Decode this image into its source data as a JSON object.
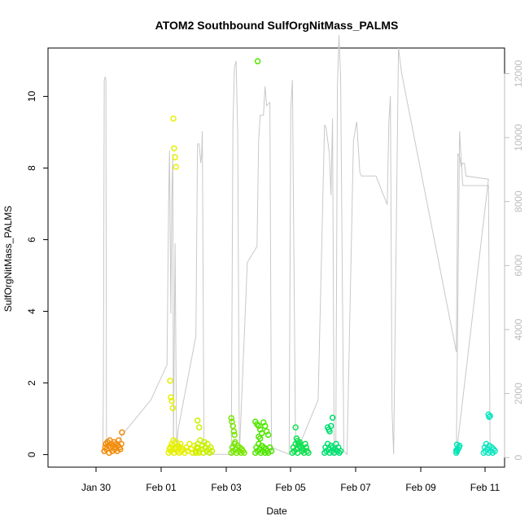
{
  "chart_data": {
    "type": "scatter",
    "title": "ATOM2 Southbound SulfOrgNitMass_PALMS",
    "xlabel": "Date",
    "ylabel": "SulfOrgNitMass_PALMS",
    "x_ticks": [
      "Jan 30",
      "Feb 01",
      "Feb 03",
      "Feb 05",
      "Feb 07",
      "Feb 09",
      "Feb 11"
    ],
    "y_ticks": [
      0,
      2,
      4,
      6,
      8,
      10
    ],
    "y2_ticks": [
      0,
      2000,
      4000,
      6000,
      8000,
      10000,
      12000
    ],
    "xlim_days": [
      -1.7,
      12.5
    ],
    "ylim": [
      -0.35,
      11.35
    ],
    "y2lim": [
      -300,
      12800
    ],
    "grid": false,
    "legend": "none",
    "colors": {
      "altitude_line": "#c8c8c8",
      "right_axis": "#bdbdbd"
    },
    "series": [
      {
        "color": "#f28c0a",
        "x": [
          0.05,
          0.08,
          0.1,
          0.12,
          0.15,
          0.18,
          0.2,
          0.22,
          0.25,
          0.28,
          0.3,
          0.32,
          0.35,
          0.38,
          0.4,
          0.42,
          0.45,
          0.48,
          0.5,
          0.52,
          0.55,
          0.58,
          0.6
        ],
        "y": [
          0.1,
          0.2,
          0.3,
          0.15,
          0.35,
          0.25,
          0.05,
          0.4,
          0.2,
          0.3,
          0.1,
          0.25,
          0.35,
          0.15,
          0.2,
          0.3,
          0.1,
          0.25,
          0.4,
          0.2,
          0.15,
          0.3,
          0.62
        ]
      },
      {
        "color": "#e6f000",
        "x": [
          2.05,
          2.08,
          2.1,
          2.12,
          2.15,
          2.18,
          2.2,
          2.22,
          2.25,
          2.28,
          2.3,
          2.32,
          2.35,
          2.38,
          2.4,
          2.42,
          2.45,
          2.5,
          2.55,
          2.6,
          2.65,
          2.7,
          2.75,
          2.8,
          2.85,
          2.9,
          2.95,
          3.0,
          2.1,
          2.12,
          2.15,
          2.18,
          2.2,
          2.22,
          2.25,
          2.28
        ],
        "y": [
          0.05,
          0.15,
          0.2,
          0.1,
          0.3,
          0.25,
          0.4,
          0.05,
          0.15,
          0.35,
          0.2,
          0.1,
          0.25,
          0.05,
          0.2,
          0.3,
          0.1,
          0.15,
          0.05,
          0.2,
          0.1,
          0.3,
          0.15,
          0.05,
          0.25,
          0.1,
          0.2,
          0.05,
          2.06,
          1.6,
          1.5,
          1.3,
          9.38,
          8.55,
          8.3,
          8.03
        ]
      },
      {
        "color": "#c8f000",
        "x": [
          2.9,
          2.93,
          2.96,
          3.0,
          3.03,
          3.06,
          3.1,
          3.13,
          3.16,
          3.2,
          3.23,
          3.26,
          3.3,
          3.33,
          3.36,
          3.4,
          2.95,
          3.0
        ],
        "y": [
          0.05,
          0.2,
          0.3,
          0.1,
          0.4,
          0.15,
          0.25,
          0.05,
          0.35,
          0.2,
          0.1,
          0.3,
          0.15,
          0.05,
          0.2,
          0.1,
          0.95,
          0.76
        ]
      },
      {
        "color": "#78e600",
        "x": [
          4.0,
          4.03,
          4.06,
          4.1,
          4.13,
          4.16,
          4.2,
          4.23,
          4.26,
          4.3,
          4.33,
          4.36,
          4.4,
          4.0,
          4.02,
          4.05,
          4.08,
          4.1,
          4.12
        ],
        "y": [
          0.05,
          0.2,
          0.1,
          0.3,
          0.15,
          0.05,
          0.25,
          0.1,
          0.2,
          0.05,
          0.15,
          0.1,
          0.05,
          1.02,
          0.92,
          0.8,
          0.65,
          0.55,
          0.35
        ]
      },
      {
        "color": "#50e600",
        "x": [
          4.75,
          4.78,
          4.82,
          4.85,
          4.88,
          4.92,
          4.95,
          4.98,
          5.02,
          5.05,
          5.08,
          5.12,
          5.15,
          5.2,
          5.25,
          4.75,
          4.8,
          4.85,
          4.9,
          4.95,
          4.85,
          4.9,
          5.0,
          5.05,
          5.1,
          5.15,
          4.82
        ],
        "y": [
          0.05,
          0.2,
          0.1,
          0.3,
          0.15,
          0.05,
          0.25,
          0.1,
          0.2,
          0.05,
          0.15,
          0.1,
          0.05,
          0.2,
          0.1,
          0.92,
          0.85,
          0.8,
          0.7,
          0.6,
          0.5,
          0.45,
          0.9,
          0.8,
          0.65,
          0.55,
          10.98
        ]
      },
      {
        "color": "#10e050",
        "x": [
          5.9,
          5.93,
          5.96,
          6.0,
          6.03,
          6.06,
          6.1,
          6.13,
          6.16,
          6.2,
          6.23,
          6.26,
          6.3,
          6.33,
          6.36,
          6.4,
          6.0,
          6.03,
          6.06,
          6.1
        ],
        "y": [
          0.05,
          0.2,
          0.1,
          0.3,
          0.15,
          0.05,
          0.25,
          0.35,
          0.2,
          0.1,
          0.15,
          0.05,
          0.3,
          0.2,
          0.1,
          0.05,
          0.76,
          0.45,
          0.38,
          0.3
        ]
      },
      {
        "color": "#00e070",
        "x": [
          6.9,
          6.93,
          6.96,
          7.0,
          7.03,
          7.06,
          7.1,
          7.13,
          7.16,
          7.2,
          7.23,
          7.26,
          7.3,
          7.33,
          7.36,
          7.4,
          7.0,
          7.03,
          7.06,
          7.1,
          7.15
        ],
        "y": [
          0.05,
          0.2,
          0.1,
          0.3,
          0.15,
          0.05,
          0.25,
          0.1,
          0.2,
          0.05,
          0.15,
          0.3,
          0.1,
          0.2,
          0.05,
          0.1,
          0.76,
          0.7,
          0.65,
          0.8,
          1.03
        ]
      },
      {
        "color": "#00e6b4",
        "x": [
          11.0,
          11.02,
          11.05,
          11.08,
          11.1,
          11.0,
          11.02
        ],
        "y": [
          0.05,
          0.1,
          0.15,
          0.2,
          0.25,
          0.12,
          0.28
        ]
      },
      {
        "color": "#10e6c0",
        "x": [
          11.85,
          11.88,
          11.9,
          11.93,
          11.96,
          12.0,
          12.03,
          12.06,
          12.1,
          12.13,
          12.16,
          12.2,
          12.0,
          12.02,
          12.05
        ],
        "y": [
          0.05,
          0.2,
          0.1,
          0.3,
          0.15,
          0.05,
          0.25,
          0.1,
          0.2,
          0.05,
          0.15,
          0.1,
          1.12,
          1.05,
          1.08
        ]
      }
    ],
    "altitude_line": [
      [
        0.0,
        100
      ],
      [
        0.02,
        1900
      ],
      [
        0.05,
        11800
      ],
      [
        0.08,
        11900
      ],
      [
        0.1,
        11800
      ],
      [
        0.12,
        300
      ],
      [
        0.35,
        200
      ],
      [
        0.6,
        700
      ],
      [
        1.5,
        1800
      ],
      [
        2.0,
        2900
      ],
      [
        2.05,
        8000
      ],
      [
        2.08,
        9600
      ],
      [
        2.12,
        4500
      ],
      [
        2.15,
        8100
      ],
      [
        2.18,
        9500
      ],
      [
        2.2,
        200
      ],
      [
        2.25,
        6700
      ],
      [
        2.3,
        300
      ],
      [
        2.35,
        900
      ],
      [
        2.9,
        3800
      ],
      [
        2.95,
        9800
      ],
      [
        3.0,
        9800
      ],
      [
        3.05,
        9200
      ],
      [
        3.08,
        9500
      ],
      [
        3.1,
        10200
      ],
      [
        3.15,
        300
      ],
      [
        3.2,
        100
      ],
      [
        3.3,
        100
      ],
      [
        4.0,
        100
      ],
      [
        4.05,
        10400
      ],
      [
        4.1,
        12200
      ],
      [
        4.15,
        12400
      ],
      [
        4.2,
        10100
      ],
      [
        4.25,
        100
      ],
      [
        4.5,
        6100
      ],
      [
        4.8,
        6600
      ],
      [
        4.85,
        9900
      ],
      [
        4.9,
        10700
      ],
      [
        5.0,
        10700
      ],
      [
        5.05,
        11600
      ],
      [
        5.1,
        11000
      ],
      [
        5.2,
        11100
      ],
      [
        5.25,
        200
      ],
      [
        5.3,
        300
      ],
      [
        5.8,
        100
      ],
      [
        5.85,
        10900
      ],
      [
        5.9,
        11800
      ],
      [
        6.0,
        100
      ],
      [
        6.7,
        1800
      ],
      [
        6.9,
        10400
      ],
      [
        6.95,
        10300
      ],
      [
        7.0,
        9900
      ],
      [
        7.05,
        9500
      ],
      [
        7.1,
        8200
      ],
      [
        7.15,
        10600
      ],
      [
        7.2,
        100
      ],
      [
        7.25,
        100
      ],
      [
        7.3,
        11600
      ],
      [
        7.35,
        13200
      ],
      [
        7.4,
        11900
      ],
      [
        7.5,
        200
      ],
      [
        7.6,
        100
      ],
      [
        7.8,
        9900
      ],
      [
        7.9,
        10500
      ],
      [
        8.0,
        8900
      ],
      [
        8.05,
        8800
      ],
      [
        8.5,
        8800
      ],
      [
        8.85,
        7900
      ],
      [
        8.9,
        10500
      ],
      [
        8.95,
        11300
      ],
      [
        9.0,
        1500
      ],
      [
        9.05,
        100
      ],
      [
        9.2,
        12800
      ],
      [
        9.3,
        12000
      ],
      [
        11.0,
        3300
      ],
      [
        11.05,
        9500
      ],
      [
        11.1,
        9400
      ],
      [
        11.15,
        9100
      ],
      [
        11.2,
        9200
      ],
      [
        11.25,
        9200
      ],
      [
        11.3,
        8800
      ],
      [
        12.0,
        8700
      ],
      [
        11.0,
        100
      ],
      [
        11.1,
        10200
      ],
      [
        11.2,
        8500
      ],
      [
        11.5,
        8500
      ],
      [
        12.0,
        8500
      ],
      [
        12.05,
        200
      ]
    ]
  }
}
